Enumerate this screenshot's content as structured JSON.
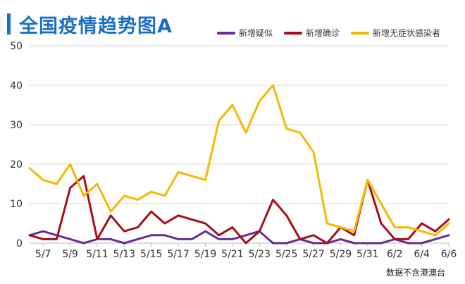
{
  "chart_data": {
    "type": "line",
    "title": "全国疫情趋势图A",
    "xlabel": "",
    "ylabel": "",
    "ylim": [
      0,
      50
    ],
    "yticks": [
      0,
      10,
      20,
      30,
      40,
      50
    ],
    "grid": true,
    "legend_position": "top",
    "x": [
      "5/6",
      "5/7",
      "5/8",
      "5/9",
      "5/10",
      "5/11",
      "5/12",
      "5/13",
      "5/14",
      "5/15",
      "5/16",
      "5/17",
      "5/18",
      "5/19",
      "5/20",
      "5/21",
      "5/22",
      "5/23",
      "5/24",
      "5/25",
      "5/26",
      "5/27",
      "5/28",
      "5/29",
      "5/30",
      "5/31",
      "6/1",
      "6/2",
      "6/3",
      "6/4",
      "6/5",
      "6/6"
    ],
    "xtick_labels": [
      "5/7",
      "5/9",
      "5/11",
      "5/13",
      "5/15",
      "5/17",
      "5/19",
      "5/21",
      "5/23",
      "5/25",
      "5/27",
      "5/29",
      "5/31",
      "6/2",
      "6/4",
      "6/6"
    ],
    "series": [
      {
        "name": "新增疑似",
        "color": "#6a2c91",
        "values": [
          2,
          3,
          2,
          1,
          0,
          1,
          1,
          0,
          1,
          2,
          2,
          1,
          1,
          3,
          1,
          1,
          2,
          3,
          0,
          0,
          1,
          0,
          0,
          1,
          0,
          0,
          0,
          1,
          0,
          0,
          1,
          2
        ]
      },
      {
        "name": "新增确诊",
        "color": "#a50f15",
        "values": [
          2,
          1,
          1,
          14,
          17,
          1,
          7,
          3,
          4,
          8,
          5,
          7,
          6,
          5,
          2,
          4,
          0,
          3,
          11,
          7,
          1,
          2,
          0,
          4,
          2,
          16,
          5,
          1,
          1,
          5,
          3,
          6
        ]
      },
      {
        "name": "新增无症状感染者",
        "color": "#f5b800",
        "values": [
          19,
          16,
          15,
          20,
          12,
          15,
          8,
          12,
          11,
          13,
          12,
          18,
          17,
          16,
          31,
          35,
          28,
          36,
          40,
          29,
          28,
          23,
          5,
          4,
          3,
          16,
          10,
          4,
          4,
          3,
          2,
          5
        ]
      }
    ]
  },
  "footer": {
    "source": "数据不含港澳台"
  }
}
